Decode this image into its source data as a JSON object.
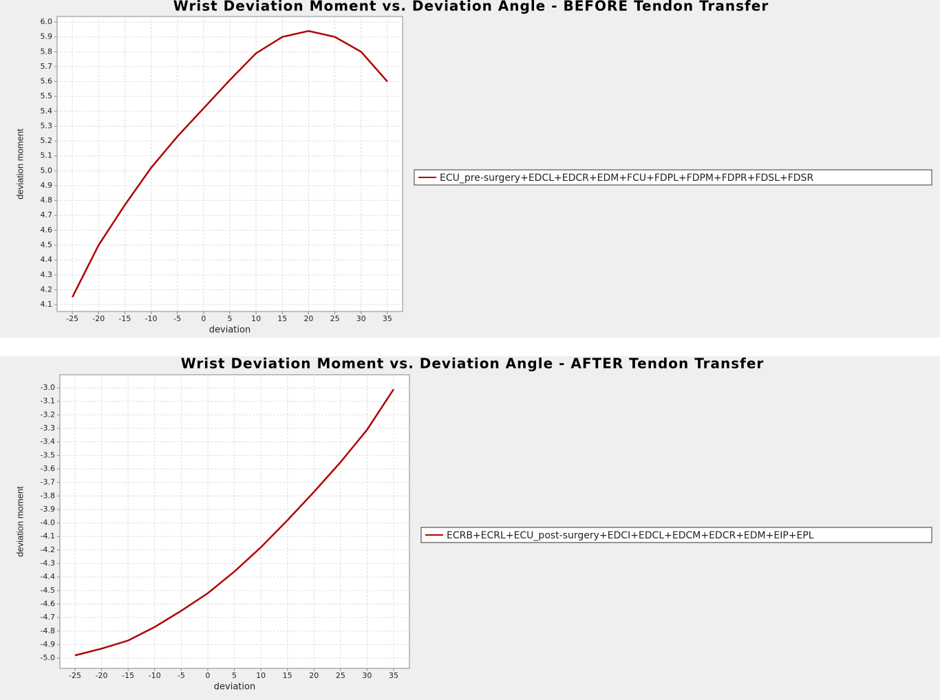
{
  "chart_data": [
    {
      "type": "line",
      "title": "Wrist Deviation Moment vs. Deviation Angle - BEFORE Tendon Transfer",
      "xlabel": "deviation",
      "ylabel": "deviation moment",
      "x": [
        -25,
        -20,
        -15,
        -10,
        -5,
        0,
        5,
        10,
        15,
        20,
        25,
        30,
        35
      ],
      "series": [
        {
          "name": "ECU_pre-surgery+EDCL+EDCR+EDM+FCU+FDPL+FDPM+FDPR+FDSL+FDSR",
          "color": "#b00000",
          "values": [
            4.15,
            4.5,
            4.77,
            5.02,
            5.23,
            5.42,
            5.61,
            5.79,
            5.9,
            5.94,
            5.9,
            5.8,
            5.6
          ]
        }
      ],
      "xlim": [
        -27.9,
        37.9
      ],
      "ylim": [
        4.054,
        6.037
      ],
      "xticks": [
        -25,
        -20,
        -15,
        -10,
        -5,
        0,
        5,
        10,
        15,
        20,
        25,
        30,
        35
      ],
      "yticks": [
        4.1,
        4.2,
        4.3,
        4.4,
        4.5,
        4.6,
        4.7,
        4.8,
        4.9,
        {
          "value": 5,
          "label": "5.0"
        },
        5.1,
        5.2,
        5.3,
        5.4,
        5.5,
        5.6,
        5.7,
        5.8,
        5.9,
        {
          "value": 6,
          "label": "6.0"
        }
      ],
      "grid": true,
      "legend": "right"
    },
    {
      "type": "line",
      "title": "Wrist Deviation Moment vs. Deviation Angle - AFTER Tendon Transfer",
      "xlabel": "deviation",
      "ylabel": "deviation moment",
      "x": [
        -25,
        -20,
        -15,
        -10,
        -5,
        0,
        5,
        10,
        15,
        20,
        25,
        30,
        35
      ],
      "series": [
        {
          "name": "ECRB+ECRL+ECU_post-surgery+EDCI+EDCL+EDCM+EDCR+EDM+EIP+EPL",
          "color": "#b00000",
          "values": [
            -4.98,
            -4.93,
            -4.87,
            -4.77,
            -4.65,
            -4.52,
            -4.36,
            -4.18,
            -3.98,
            -3.77,
            -3.55,
            -3.31,
            -3.01
          ]
        }
      ],
      "xlim": [
        -27.85,
        37.98
      ],
      "ylim": [
        -5.076,
        -2.903
      ],
      "xticks": [
        -25,
        -20,
        -15,
        -10,
        -5,
        0,
        5,
        10,
        15,
        20,
        25,
        30,
        35
      ],
      "yticks": [
        {
          "value": -5,
          "label": "-5.0"
        },
        -4.9,
        -4.8,
        -4.7,
        -4.6,
        -4.5,
        -4.4,
        -4.3,
        -4.2,
        -4.1,
        {
          "value": -4,
          "label": "-4.0"
        },
        -3.9,
        -3.8,
        -3.7,
        -3.6,
        -3.5,
        -3.4,
        -3.3,
        -3.2,
        -3.1,
        {
          "value": -3,
          "label": "-3.0"
        }
      ],
      "grid": true,
      "legend": "right"
    }
  ]
}
